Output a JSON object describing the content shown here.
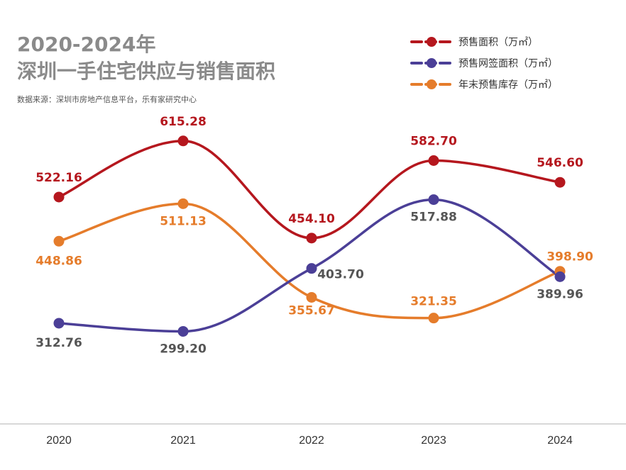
{
  "title": {
    "line1": "2020-2024年",
    "line2": "深圳一手住宅供应与销售面积"
  },
  "source": "数据来源：深圳市房地产信息平台，乐有家研究中心",
  "colors": {
    "presale": "#b5171e",
    "signed": "#4b3f97",
    "inventory": "#e57c2b",
    "axis": "#cccccc",
    "tick": "#333333",
    "label_signed": "#555555"
  },
  "chart_data": {
    "type": "line",
    "title": "2020-2024年深圳一手住宅供应与销售面积",
    "xlabel": "",
    "ylabel": "",
    "categories": [
      "2020",
      "2021",
      "2022",
      "2023",
      "2024"
    ],
    "ylim": [
      0,
      800
    ],
    "grid": false,
    "legend_position": "top-right",
    "series": [
      {
        "key": "presale",
        "name": "预售面积（万㎡）",
        "values": [
          522.16,
          615.28,
          454.1,
          582.7,
          546.6
        ],
        "labels": [
          "522.16",
          "615.28",
          "454.10",
          "582.70",
          "546.60"
        ]
      },
      {
        "key": "signed",
        "name": "预售网签面积（万㎡）",
        "values": [
          312.76,
          299.2,
          403.7,
          517.88,
          389.96
        ],
        "labels": [
          "312.76",
          "299.20",
          "403.70",
          "517.88",
          "389.96"
        ]
      },
      {
        "key": "inventory",
        "name": "年末预售库存（万㎡）",
        "values": [
          448.86,
          511.13,
          355.67,
          321.35,
          398.9
        ],
        "labels": [
          "448.86",
          "511.13",
          "355.67",
          "321.35",
          "398.90"
        ]
      }
    ]
  }
}
